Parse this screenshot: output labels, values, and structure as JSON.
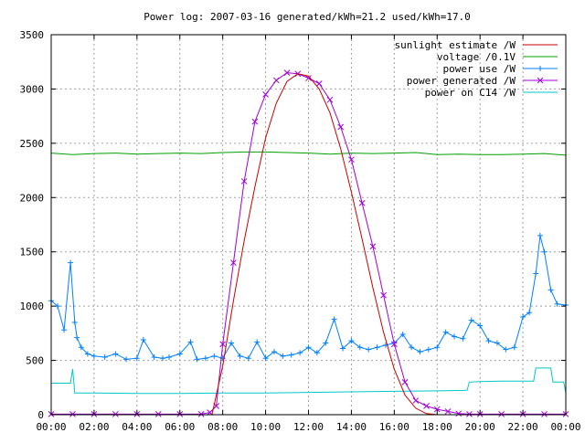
{
  "chart_data": {
    "type": "line",
    "title": "Power log: 2007-03-16 generated/kWh=21.2 used/kWh=17.0",
    "xlabel": "",
    "ylabel": "",
    "xlim": [
      0,
      24
    ],
    "ylim": [
      0,
      3500
    ],
    "grid": true,
    "legend_position": "top-right",
    "x_ticks": [
      "00:00",
      "02:00",
      "04:00",
      "06:00",
      "08:00",
      "10:00",
      "12:00",
      "14:00",
      "16:00",
      "18:00",
      "20:00",
      "22:00",
      "00:00"
    ],
    "y_ticks": [
      "0",
      "500",
      "1000",
      "1500",
      "2000",
      "2500",
      "3000",
      "3500"
    ],
    "series": [
      {
        "name": "sunlight estimate /W",
        "color": "#cc0000",
        "marker": "none",
        "x": [
          7.5,
          8,
          8.5,
          9,
          9.5,
          10,
          10.5,
          11,
          11.5,
          12,
          12.5,
          13,
          13.5,
          14,
          14.5,
          15,
          15.5,
          16,
          16.5,
          17,
          17.5,
          18
        ],
        "values": [
          0,
          450,
          1050,
          1600,
          2100,
          2550,
          2870,
          3070,
          3140,
          3120,
          3000,
          2780,
          2450,
          2050,
          1620,
          1170,
          760,
          420,
          180,
          60,
          10,
          0
        ]
      },
      {
        "name": "voltage /0.1V",
        "color": "#00a000",
        "marker": "none",
        "x": [
          0,
          1,
          2,
          3,
          4,
          5,
          6,
          7,
          8,
          9,
          10,
          11,
          12,
          13,
          14,
          15,
          16,
          17,
          18,
          19,
          20,
          21,
          22,
          23,
          24
        ],
        "values": [
          2410,
          2395,
          2405,
          2410,
          2400,
          2405,
          2410,
          2405,
          2415,
          2420,
          2420,
          2415,
          2410,
          2400,
          2410,
          2405,
          2410,
          2415,
          2395,
          2400,
          2395,
          2395,
          2400,
          2405,
          2390
        ]
      },
      {
        "name": "power use /W",
        "color": "#0080ff",
        "marker": "plus",
        "x": [
          0,
          0.3,
          0.6,
          0.9,
          1.1,
          1.2,
          1.4,
          1.7,
          2,
          2.5,
          3,
          3.5,
          4,
          4.3,
          4.8,
          5.2,
          5.5,
          6,
          6.5,
          6.8,
          7.2,
          7.6,
          8,
          8.4,
          8.8,
          9.2,
          9.6,
          10,
          10.4,
          10.8,
          11.2,
          11.6,
          12,
          12.4,
          12.8,
          13.2,
          13.6,
          14,
          14.4,
          14.8,
          15.2,
          15.6,
          16,
          16.4,
          16.8,
          17.2,
          17.6,
          18,
          18.4,
          18.8,
          19.2,
          19.6,
          20,
          20.4,
          20.8,
          21.2,
          21.6,
          22,
          22.3,
          22.6,
          22.8,
          23,
          23.3,
          23.6,
          24
        ],
        "values": [
          1050,
          1000,
          780,
          1400,
          850,
          710,
          620,
          560,
          540,
          530,
          560,
          510,
          520,
          690,
          530,
          520,
          530,
          560,
          670,
          510,
          520,
          540,
          520,
          660,
          540,
          520,
          670,
          520,
          580,
          540,
          550,
          570,
          620,
          570,
          660,
          880,
          610,
          680,
          620,
          600,
          620,
          640,
          660,
          740,
          620,
          580,
          600,
          620,
          760,
          720,
          700,
          870,
          820,
          680,
          660,
          600,
          620,
          900,
          940,
          1300,
          1650,
          1500,
          1150,
          1020,
          1010
        ]
      },
      {
        "name": "power generated /W",
        "color": "#a000d8",
        "marker": "x",
        "x": [
          0,
          1,
          2,
          3,
          4,
          5,
          6,
          7,
          7.4,
          7.7,
          8,
          8.5,
          9,
          9.5,
          10,
          10.5,
          11,
          11.5,
          12,
          12.5,
          13,
          13.5,
          14,
          14.5,
          15,
          15.5,
          16,
          16.5,
          17,
          17.5,
          18,
          18.5,
          19,
          19.5,
          20,
          21,
          22,
          23,
          24
        ],
        "values": [
          5,
          5,
          5,
          5,
          5,
          5,
          5,
          5,
          20,
          80,
          650,
          1400,
          2150,
          2700,
          2950,
          3080,
          3150,
          3140,
          3100,
          3050,
          2900,
          2650,
          2350,
          1950,
          1550,
          1100,
          650,
          300,
          130,
          80,
          50,
          30,
          10,
          5,
          5,
          5,
          5,
          5,
          5
        ]
      },
      {
        "name": "power on C14 /W",
        "color": "#00c8c8",
        "marker": "none",
        "x": [
          0,
          0.9,
          1.0,
          1.1,
          2,
          4,
          6,
          8,
          10,
          12,
          14,
          16,
          18,
          19.4,
          19.5,
          20,
          21,
          22,
          22.5,
          22.6,
          23,
          23.3,
          23.4,
          23.9,
          24
        ],
        "values": [
          290,
          290,
          420,
          200,
          200,
          195,
          195,
          200,
          200,
          205,
          210,
          215,
          220,
          225,
          300,
          305,
          310,
          310,
          310,
          430,
          430,
          430,
          300,
          300,
          200
        ]
      }
    ]
  }
}
